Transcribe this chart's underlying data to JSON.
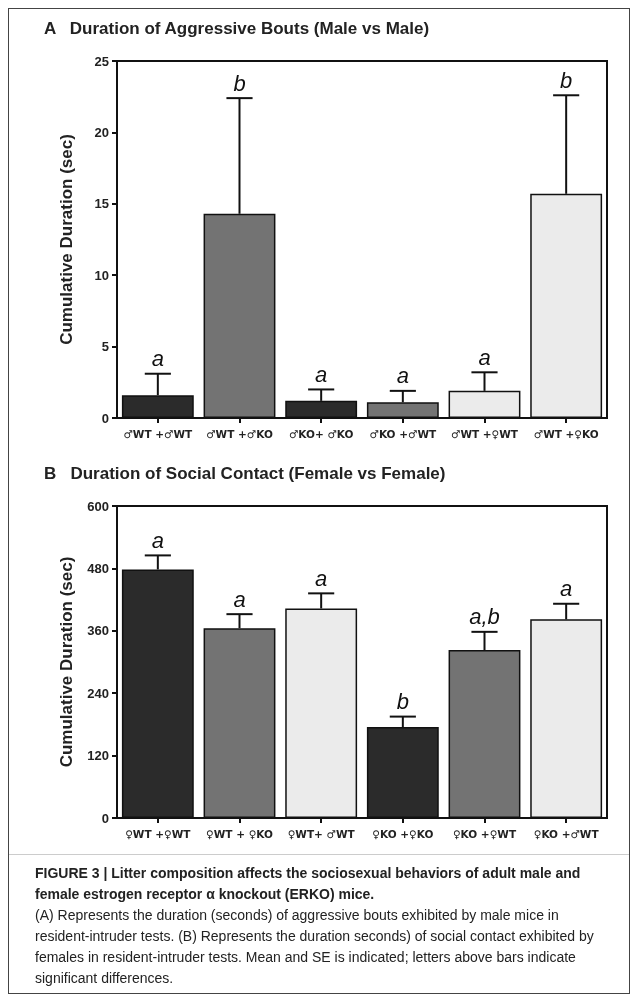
{
  "chart_data": [
    {
      "type": "bar",
      "title": "A   Duration of Aggressive Bouts (Male vs Male)",
      "ylabel": "Cumulative Duration (sec)",
      "categories": [
        "♂WT +♂WT",
        "♂WT +♂KO",
        "♂KO+ ♂KO",
        "♂KO +♂WT",
        "♂WT +♀WT",
        "♂WT +♀KO"
      ],
      "values": [
        1.6,
        14.3,
        1.2,
        1.1,
        1.9,
        15.7
      ],
      "colors": [
        "#2b2b2b",
        "#737373",
        "#2b2b2b",
        "#737373",
        "#ebebeb",
        "#ebebeb"
      ],
      "errors": [
        [
          1.6,
          3.1
        ],
        [
          14.3,
          22.4
        ],
        [
          1.2,
          2.0
        ],
        [
          1.1,
          1.9
        ],
        [
          1.9,
          3.2
        ],
        [
          15.7,
          22.6
        ]
      ],
      "ylim": [
        0,
        25
      ],
      "yticks": [
        0,
        5,
        10,
        15,
        20,
        25
      ],
      "grid": false,
      "annotations": [
        {
          "text": "a",
          "x": "♂WT +♂WT",
          "y": 3.1
        },
        {
          "text": "b",
          "x": "♂WT +♂KO",
          "y": 22.4
        },
        {
          "text": "a",
          "x": "♂KO+ ♂KO",
          "y": 2.0
        },
        {
          "text": "a",
          "x": "♂KO +♂WT",
          "y": 1.9
        },
        {
          "text": "a",
          "x": "♂WT +♀WT",
          "y": 3.2
        },
        {
          "text": "b",
          "x": "♂WT +♀KO",
          "y": 22.6
        }
      ]
    },
    {
      "type": "bar",
      "title": "B   Duration of Social Contact (Female vs Female)",
      "ylabel": "Cumulative Duration (sec)",
      "categories": [
        "♀WT +♀WT",
        "♀WT + ♀KO",
        "♀WT+ ♂WT",
        "♀KO +♀KO",
        "♀KO +♀WT",
        "♀KO +♂WT"
      ],
      "values": [
        478,
        365,
        403,
        175,
        323,
        382
      ],
      "colors": [
        "#2b2b2b",
        "#737373",
        "#ebebeb",
        "#2b2b2b",
        "#737373",
        "#ebebeb"
      ],
      "errors": [
        [
          478,
          505
        ],
        [
          365,
          392
        ],
        [
          403,
          432
        ],
        [
          175,
          195
        ],
        [
          323,
          358
        ],
        [
          382,
          412
        ]
      ],
      "ylim": [
        0,
        600
      ],
      "yticks": [
        0,
        120,
        240,
        360,
        480,
        600
      ],
      "grid": false,
      "annotations": [
        {
          "text": "a",
          "x": "♀WT +♀WT",
          "y": 505
        },
        {
          "text": "a",
          "x": "♀WT + ♀KO",
          "y": 392
        },
        {
          "text": "a",
          "x": "♀WT+ ♂WT",
          "y": 432
        },
        {
          "text": "b",
          "x": "♀KO +♀KO",
          "y": 195
        },
        {
          "text": "a,b",
          "x": "♀KO +♀WT",
          "y": 358
        },
        {
          "text": "a",
          "x": "♀KO +♂WT",
          "y": 412
        },
        "FIGURE 3 | Litter composition affects the sociosexual behaviors of adult male and female estrogen receptor α knockout (ERKO) mice.",
        "(A) Represents the duration (seconds) of aggressive bouts exhibited by male mice in resident-intruder tests. (B) Represents the duration seconds) of social contact exhibited by females in resident-intruder tests. Mean and SE is indicated; letters above bars indicate significant differences."
      ]
    }
  ]
}
